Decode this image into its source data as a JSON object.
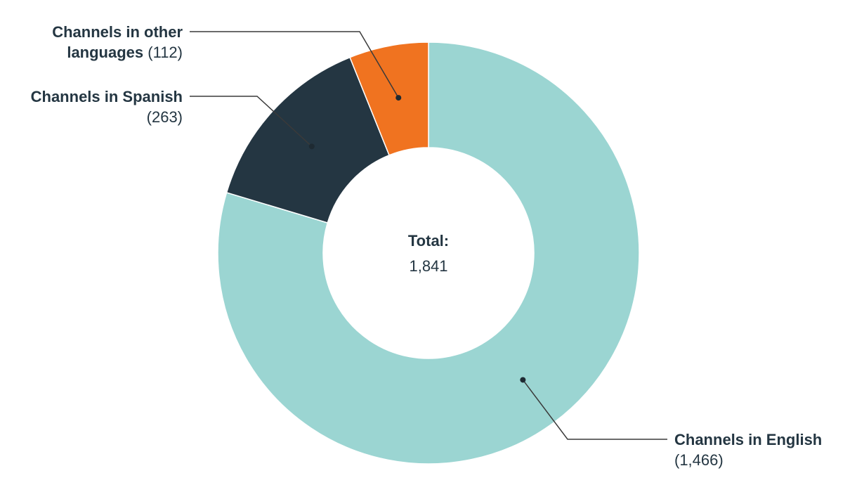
{
  "chart_data": {
    "type": "pie",
    "categories": [
      "Channels in English",
      "Channels in Spanish",
      "Channels in other languages"
    ],
    "values": [
      1466,
      263,
      112
    ],
    "value_labels": [
      "(1,466)",
      "(263)",
      "(112)"
    ],
    "colors": [
      "#9bd5d2",
      "#243642",
      "#f07320"
    ],
    "center_title": "Total:",
    "total": {
      "value": 1841,
      "label": "1,841"
    }
  }
}
